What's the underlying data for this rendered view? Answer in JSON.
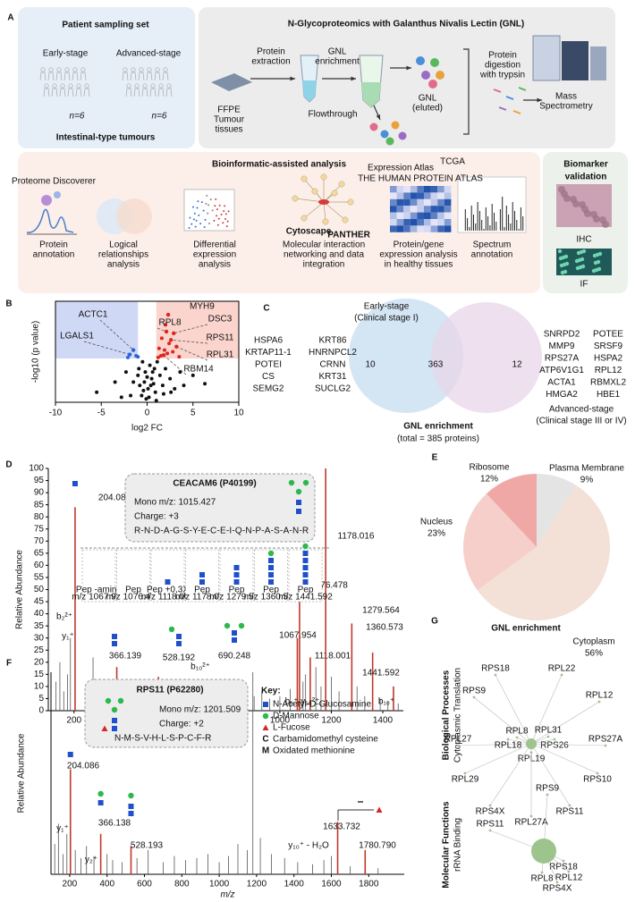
{
  "panel_labels": [
    "A",
    "B",
    "C",
    "D",
    "E",
    "F",
    "G"
  ],
  "panel_a": {
    "sampling": {
      "title": "Patient sampling set",
      "groups": [
        "Early-stage",
        "Advanced-stage"
      ],
      "n": [
        "n=6",
        "n=6"
      ],
      "caption": "Intestinal-type tumours"
    },
    "workflow": {
      "title": "N-Glycoproteomics with Galanthus Nivalis Lectin (GNL)",
      "steps": [
        [
          "FFPE",
          "Tumour",
          "tissues"
        ],
        [
          "Protein",
          "extraction"
        ],
        [
          "GNL",
          "enrichment"
        ],
        [
          "Flowthrough"
        ],
        [
          "GNL",
          "(eluted)"
        ],
        [
          "Protein",
          "digestion",
          "with trypsin"
        ],
        [
          "Mass",
          "Spectrometry"
        ]
      ]
    },
    "bioinformatics": {
      "title": "Bioinformatic-assisted analysis",
      "tools": [
        "Proteome Discoverer",
        "Cytoscape",
        "PANTHER",
        "Expression Atlas",
        "THE HUMAN PROTEIN ATLAS",
        "TCGA"
      ],
      "items": [
        [
          "Protein",
          "annotation"
        ],
        [
          "Logical",
          "relationships",
          "analysis"
        ],
        [
          "Differential",
          "expression",
          "analysis"
        ],
        [
          "Molecular interaction",
          "networking and data",
          "integration"
        ],
        [
          "Protein/gene",
          "expression analysis",
          "in healthy tissues"
        ],
        [
          "Spectrum",
          "annotation"
        ]
      ]
    },
    "validation": {
      "title": [
        "Biomarker",
        "validation"
      ],
      "methods": [
        "IHC",
        "IF"
      ]
    }
  },
  "chart_data": [
    {
      "type": "scatter",
      "xlabel": "log2 FC",
      "ylabel": "-log10 (p value)",
      "x": [
        -1.2,
        -1.0,
        -2.1,
        2.0,
        1.6,
        2.4,
        1.3,
        1.9,
        2.8,
        1.5,
        2.2,
        3.5,
        1.2,
        -0.5,
        0.3,
        -0.2,
        0.8,
        1.1,
        -1.0,
        0.5,
        -0.8,
        0.1,
        0.6,
        -0.3,
        1.4,
        2.0,
        -1.5,
        0.9,
        -0.6,
        0.2,
        1.7,
        2.5,
        -2.3,
        3.0,
        0.4,
        -0.1,
        0.7,
        1.0,
        -0.4,
        -5.5,
        -3.5,
        4.0,
        6.3,
        -0.9,
        0.0,
        1.8,
        2.6,
        -1.8,
        5.0,
        -2.8,
        3.6
      ],
      "y": [
        1.38,
        1.35,
        1.33,
        2.3,
        1.9,
        1.75,
        1.6,
        1.55,
        1.5,
        1.38,
        1.45,
        1.35,
        1.33,
        1.2,
        1.1,
        0.9,
        1.0,
        1.2,
        0.8,
        0.7,
        0.5,
        0.4,
        0.9,
        0.6,
        0.8,
        1.0,
        0.6,
        0.3,
        0.2,
        0.15,
        0.5,
        0.7,
        0.9,
        0.4,
        0.5,
        0.1,
        0.55,
        0.05,
        0.35,
        0.3,
        0.6,
        0.5,
        0.55,
        1.0,
        0.75,
        0.25,
        0.3,
        0.2,
        0.8,
        0.15,
        0.9
      ],
      "xlim": [
        -10,
        10
      ],
      "xticks": [
        -10,
        -5,
        0,
        5,
        10
      ],
      "ylim": [
        0,
        3
      ],
      "thresholds": {
        "x": [
          -1,
          1
        ],
        "y": 1.3
      },
      "colors": {
        "up": "#e0241b",
        "down": "#2e63d3",
        "other": "#111111"
      },
      "region_colors": {
        "up": "#fad4cd",
        "down": "#cfd8f5"
      },
      "annotations": [
        {
          "text": "ACTC1",
          "x": -1.5,
          "y": 1.55
        },
        {
          "text": "LGALS1",
          "x": -1.9,
          "y": 1.42
        },
        {
          "text": "MYH9",
          "x": 2.3,
          "y": 2.6
        },
        {
          "text": "RPL8",
          "x": 2.1,
          "y": 2.1
        },
        {
          "text": "DSC3",
          "x": 2.9,
          "y": 2.05
        },
        {
          "text": "RPS11",
          "x": 2.6,
          "y": 1.85
        },
        {
          "text": "RPL31",
          "x": 3.2,
          "y": 1.65
        },
        {
          "text": "RBM14",
          "x": 1.8,
          "y": 1.4
        }
      ]
    },
    {
      "type": "pie",
      "categories": [
        "Plasma Membrane",
        "Cytoplasm",
        "Nucleus",
        "Ribosome"
      ],
      "values": [
        9,
        56,
        23,
        12
      ],
      "value_labels": [
        "9%",
        "56%",
        "23%",
        "12%"
      ],
      "colors": [
        "#e4e4e4",
        "#f3e0d6",
        "#f6cfcb",
        "#f0a8a6"
      ]
    },
    {
      "type": "spectrum",
      "title": "CEACAM6 (P40199)",
      "mono": "Mono m/z: 1015.427",
      "charge": "Charge: +3",
      "peptide": "R-N-D-A-G-S-Y-E-C-E-I-Q-N-P-A-S-A-N-R",
      "xlabel": "m/z",
      "ylabel": "Relative Abundance",
      "xlim": [
        100,
        1480
      ],
      "xticks": [
        200,
        400,
        600,
        800,
        1000,
        1200,
        1400
      ],
      "ylim": [
        0,
        100
      ],
      "yticks": [
        0,
        5,
        10,
        15,
        20,
        25,
        30,
        35,
        40,
        45,
        50,
        55,
        60,
        65,
        70,
        75,
        80,
        85,
        90,
        95,
        100
      ],
      "peaks": {
        "x": [
          130,
          145,
          160,
          175,
          186,
          250,
          274,
          300,
          325,
          345,
          390,
          420,
          445,
          470,
          490,
          510,
          560,
          590,
          620,
          650,
          710,
          740,
          770,
          820,
          860,
          900,
          930,
          960,
          1000,
          1040,
          1090,
          1100,
          1140,
          1160,
          1200,
          1230,
          1300,
          1330,
          1390,
          1420,
          1460
        ],
        "y": [
          12,
          20,
          8,
          15,
          30,
          10,
          22,
          9,
          6,
          12,
          8,
          5,
          7,
          10,
          6,
          9,
          5,
          7,
          6,
          8,
          5,
          4,
          6,
          5,
          7,
          6,
          8,
          5,
          6,
          9,
          12,
          15,
          18,
          10,
          14,
          8,
          10,
          6,
          5,
          4,
          3
        ]
      },
      "labeled_peaks": {
        "x": [
          204.086,
          366.139,
          528.192,
          690.248,
          1067.954,
          1076.478,
          1118.001,
          1178.016,
          1279.564,
          1360.573,
          1441.592
        ],
        "y": [
          84,
          18,
          14,
          10,
          30,
          45,
          22,
          100,
          36,
          24,
          10
        ]
      },
      "ion_labels": [
        "b₂²⁺",
        "y₁⁺",
        "b₁⁺",
        "b₁₀²⁺",
        "b₆⁺ y₁₈²⁺",
        "b₁₀⁺"
      ],
      "fragment_boxes": [
        {
          "label": "Pep -amine",
          "mz": "m/z 1067.954"
        },
        {
          "label": "Pep",
          "mz": "m/z 1076.478"
        },
        {
          "label": "Pep +0,3X",
          "mz": "m/z 1118.001"
        },
        {
          "label": "Pep",
          "mz": "m/z 1178.016"
        },
        {
          "label": "Pep",
          "mz": "m/z 1279.564"
        },
        {
          "label": "Pep",
          "mz": "m/z 1360.573"
        },
        {
          "label": "Pep",
          "mz": "m/z 1441.592"
        }
      ],
      "peak_color": "#c0392b",
      "label_color": "#c57fc9"
    },
    {
      "type": "spectrum",
      "title": "RPS11 (P62280)",
      "mono": "Mono m/z: 1201.509",
      "charge": "Charge: +2",
      "peptide": "N-M-S-V-H-L-S-P-C-F-R",
      "xlabel": "m/z",
      "ylabel": "Relative Abundance",
      "xlim": [
        100,
        1990
      ],
      "xticks": [
        200,
        400,
        600,
        800,
        1000,
        1200,
        1400,
        1600,
        1800
      ],
      "ylim": [
        0,
        100
      ],
      "peaks": {
        "x": [
          120,
          140,
          165,
          185,
          230,
          260,
          290,
          330,
          400,
          430,
          480,
          560,
          620,
          700,
          760,
          820,
          880,
          940,
          1000,
          1050,
          1100,
          1150,
          1180,
          1220,
          1280,
          1350,
          1420,
          1500,
          1560,
          1600,
          1700,
          1850
        ],
        "y": [
          15,
          25,
          10,
          20,
          12,
          8,
          14,
          9,
          10,
          7,
          6,
          8,
          12,
          6,
          9,
          7,
          8,
          10,
          6,
          9,
          15,
          12,
          100,
          18,
          10,
          8,
          6,
          5,
          7,
          9,
          4,
          3
        ]
      },
      "labeled_peaks": {
        "x": [
          204.086,
          366.138,
          528.193,
          1633.732,
          1780.79
        ],
        "labels": [
          "204.086",
          "366.138",
          "528.193",
          "1633.732",
          "1780.790"
        ],
        "y": [
          52,
          20,
          14,
          26,
          12
        ]
      },
      "ion_labels": [
        "y₁⁺",
        "y₂⁺",
        "y₁₀⁺ - H₂O"
      ],
      "key": {
        "title": "Key:",
        "items": [
          {
            "text": "N-Acetyl-D-Glucosamine"
          },
          {
            "text": "D-Mannose"
          },
          {
            "text": "L-Fucose"
          },
          {
            "symbol": "C",
            "text": "Carbamidomethyl cysteine"
          },
          {
            "symbol": "M",
            "text": "Oxidated methionine"
          }
        ]
      },
      "peak_color": "#c0392b",
      "label_color": "#c57fc9"
    }
  ],
  "venn": {
    "sets": [
      [
        "Early-stage",
        "(Clinical stage I)"
      ],
      [
        "Advanced-stage",
        "(Clinical stage III or IV)"
      ]
    ],
    "counts": [
      10,
      363,
      12
    ],
    "only_early": [
      [
        "HSPA6",
        "KRTAP11-1",
        "POTEI",
        "CS",
        "SEMG2"
      ],
      [
        "KRT86",
        "HNRNPCL2",
        "CRNN",
        "KRT31",
        "SUCLG2"
      ]
    ],
    "only_advanced": [
      [
        "SNRPD2",
        "MMP9",
        "RPS27A",
        "ATP6V1G1",
        "ACTA1",
        "HMGA2"
      ],
      [
        "POTEE",
        "SRSF9",
        "HSPA2",
        "RPL12",
        "RBMXL2",
        "HBE1"
      ]
    ],
    "title": "GNL enrichment",
    "total": "(total = 385 proteins)",
    "colors": [
      "#cfe2f3",
      "#e8d5ea"
    ]
  },
  "network": {
    "title": "GNL enrichment",
    "node_color": "#9cc48c",
    "groups": [
      {
        "category": "Biological Processes",
        "term": "Cytoplasmic Translation",
        "nodes": [
          "RPS18",
          "RPL22",
          "RPS9",
          "RPL12",
          "RPL31",
          "RPL8",
          "RPL27",
          "RPS26",
          "RPS27A",
          "RPL18",
          "RPL19",
          "RPL29",
          "RPS10",
          "RPS4X",
          "RPS11",
          "RPL27A"
        ]
      },
      {
        "category": "Molecular Functions",
        "term": "rRNA Binding",
        "nodes": [
          "RPS9",
          "RPS11",
          "RPS18",
          "RPL12",
          "RPL8",
          "RPS4X"
        ]
      }
    ]
  }
}
